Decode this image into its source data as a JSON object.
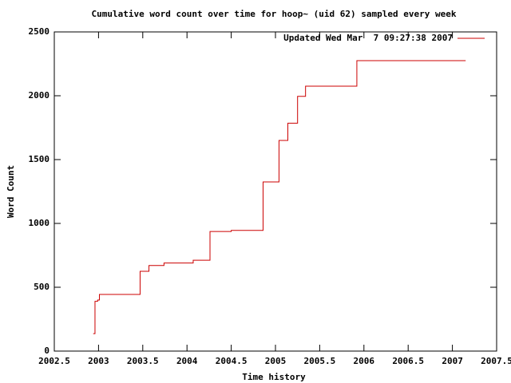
{
  "chart_data": {
    "type": "step",
    "title": "Cumulative word count over time for hoop~ (uid 62) sampled every week",
    "x_label": "Time history",
    "y_label": "Word Count",
    "xlim": [
      2002.5,
      2007.5
    ],
    "xticks": [
      2002.5,
      2003,
      2003.5,
      2004,
      2004.5,
      2005,
      2005.5,
      2006,
      2006.5,
      2007,
      2007.5
    ],
    "ylim": [
      0,
      2500
    ],
    "yticks": [
      0,
      500,
      1000,
      1500,
      2000,
      2500
    ],
    "legend": "top-right",
    "series": [
      {
        "name": "Updated Wed Mar  7 09:27:38 2007",
        "color": "#cc0000",
        "x": [
          2002.94,
          2002.96,
          2002.99,
          2003.01,
          2003.47,
          2003.57,
          2003.74,
          2004.07,
          2004.26,
          2004.5,
          2004.86,
          2005.04,
          2005.14,
          2005.25,
          2005.34,
          2005.92,
          2007.15
        ],
        "values": [
          137,
          390,
          400,
          444,
          625,
          670,
          690,
          712,
          937,
          945,
          1325,
          1650,
          1785,
          1995,
          2075,
          2275,
          2275
        ]
      }
    ]
  }
}
